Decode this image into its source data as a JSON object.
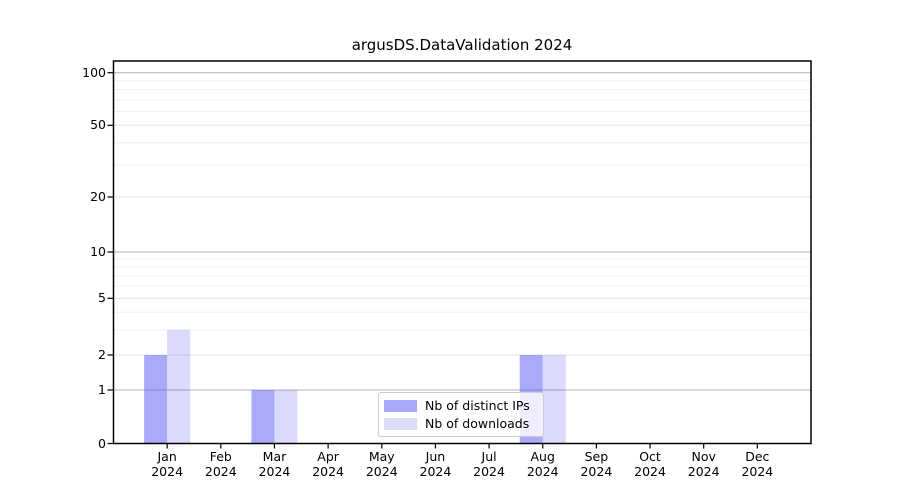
{
  "chart_data": {
    "type": "bar",
    "title": "argusDS.DataValidation 2024",
    "year": "2024",
    "months": [
      "Jan",
      "Feb",
      "Mar",
      "Apr",
      "May",
      "Jun",
      "Jul",
      "Aug",
      "Sep",
      "Oct",
      "Nov",
      "Dec"
    ],
    "series": [
      {
        "name": "Nb of distinct IPs",
        "color": "rgba(85,85,245,0.5)",
        "color_hex": "#a9a9f9",
        "values": [
          2,
          0,
          1,
          0,
          0,
          0,
          0,
          2,
          0,
          0,
          0,
          0
        ]
      },
      {
        "name": "Nb of downloads",
        "color": "rgba(85,85,245,0.22)",
        "color_hex": "#dcdcf9",
        "values": [
          3,
          0,
          1,
          0,
          0,
          0,
          0,
          2,
          0,
          0,
          0,
          0
        ]
      }
    ],
    "y_ticks": [
      0,
      1,
      2,
      5,
      10,
      20,
      50,
      100
    ],
    "y_minor_grid": [
      3,
      4,
      6,
      7,
      8,
      9,
      30,
      40,
      60,
      70,
      80,
      90
    ],
    "y_scale": "symlog",
    "ylim": [
      0,
      117
    ],
    "grid": true,
    "legend_position": "inside lower center",
    "colors": {
      "grid_decade": "#b0b0b0",
      "grid_tick": "#e3e3e3",
      "grid_minor": "#f0f0f0",
      "axis": "#000000",
      "text": "#000000"
    }
  }
}
